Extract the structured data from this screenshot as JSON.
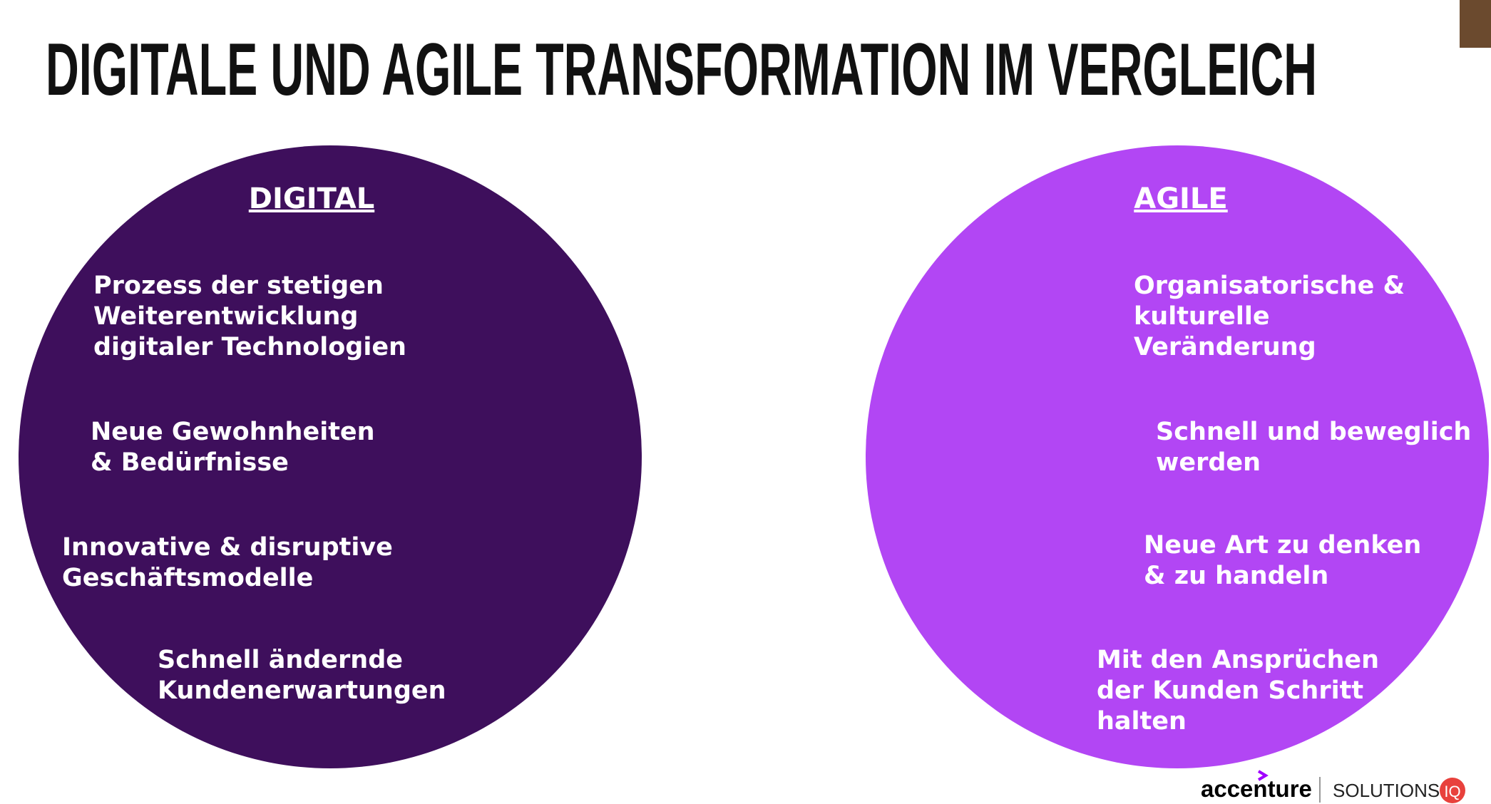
{
  "title": "DIGITALE UND AGILE TRANSFORMATION IM VERGLEICH",
  "sections": [
    {
      "heading": "DIGITAL",
      "items": [
        {
          "lines": [
            "Prozess der stetigen",
            "Weiterentwicklung",
            "digitaler Technologien"
          ]
        },
        {
          "lines": [
            "Neue Gewohnheiten",
            "& Bedürfnisse"
          ]
        },
        {
          "lines": [
            "Innovative & disruptive",
            "Geschäftsmodelle"
          ]
        },
        {
          "lines": [
            "Schnell ändernde",
            "Kundenerwartungen"
          ]
        }
      ]
    },
    {
      "heading": "AGILE",
      "items": [
        {
          "lines": [
            "Organisatorische &",
            "kulturelle",
            "Veränderung"
          ]
        },
        {
          "lines": [
            "Schnell und beweglich",
            "werden"
          ]
        },
        {
          "lines": [
            "Neue Art zu denken",
            "& zu handeln"
          ]
        },
        {
          "lines": [
            "Mit den Ansprüchen",
            "der Kunden Schritt",
            "halten"
          ]
        }
      ]
    }
  ],
  "logo": {
    "brand": "accenture",
    "product": "SOLUTIONS",
    "badge": "IQ"
  }
}
